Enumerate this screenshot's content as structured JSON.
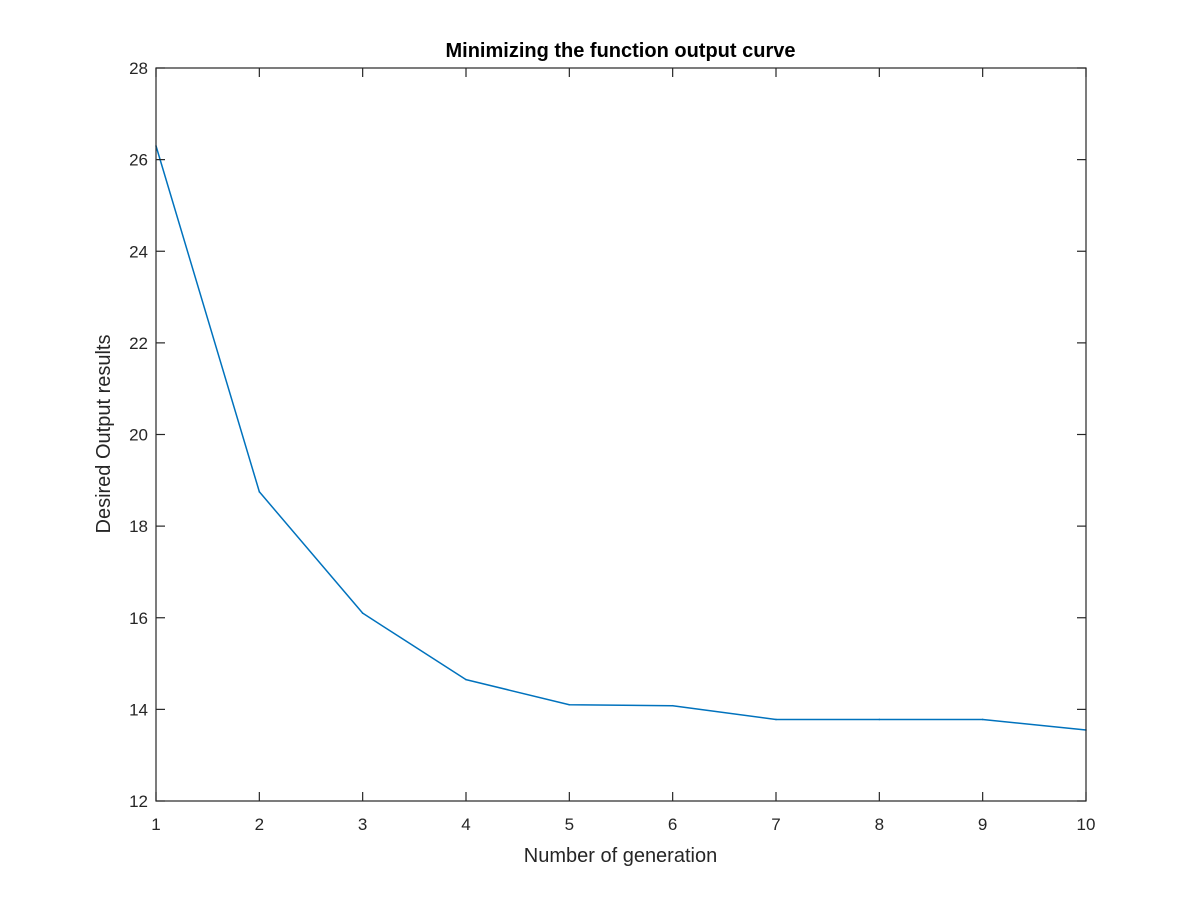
{
  "chart_data": {
    "type": "line",
    "title": "Minimizing the function output curve",
    "xlabel": "Number of generation",
    "ylabel": "Desired Output results",
    "xlim": [
      1,
      10
    ],
    "ylim": [
      12,
      28
    ],
    "xticks": [
      1,
      2,
      3,
      4,
      5,
      6,
      7,
      8,
      9,
      10
    ],
    "yticks": [
      12,
      14,
      16,
      18,
      20,
      22,
      24,
      26,
      28
    ],
    "grid": false,
    "box": true,
    "series": [
      {
        "color": "#0072BD",
        "x": [
          1,
          2,
          3,
          4,
          5,
          6,
          7,
          8,
          9,
          10
        ],
        "y": [
          26.3,
          18.75,
          16.1,
          14.65,
          14.1,
          14.08,
          13.78,
          13.78,
          13.78,
          13.55
        ]
      }
    ]
  }
}
